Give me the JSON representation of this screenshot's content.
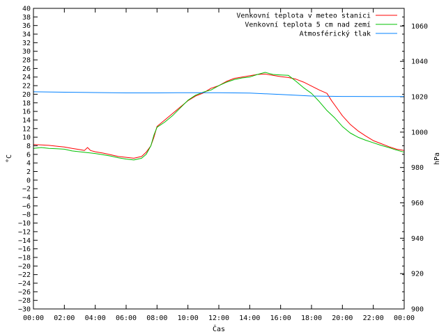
{
  "chart_data": {
    "type": "line",
    "title": "",
    "xlabel": "Čas",
    "ylabel_left": "°C",
    "ylabel_right": "hPa",
    "x_ticks": [
      "00:00",
      "02:00",
      "04:00",
      "06:00",
      "08:00",
      "10:00",
      "12:00",
      "14:00",
      "16:00",
      "18:00",
      "20:00",
      "22:00",
      "00:00"
    ],
    "xlim_hours": [
      0,
      24
    ],
    "ylim_left": [
      -30,
      40
    ],
    "y_ticks_left": [
      "40",
      "38",
      "36",
      "34",
      "32",
      "30",
      "28",
      "26",
      "24",
      "22",
      "20",
      "18",
      "16",
      "14",
      "12",
      "10",
      "8",
      "6",
      "4",
      "2",
      "0",
      "−2",
      "−4",
      "−6",
      "−8",
      "−10",
      "−12",
      "−14",
      "−16",
      "−18",
      "−20",
      "−22",
      "−24",
      "−26",
      "−28",
      "−30"
    ],
    "ylim_right": [
      900,
      1070
    ],
    "y_ticks_right": [
      "1060",
      "1040",
      "1020",
      "1000",
      "980",
      "960",
      "940",
      "920",
      "900"
    ],
    "legend_position": "top-right",
    "series": [
      {
        "name": "Venkovní teplota v meteo stanici",
        "axis": "left",
        "color": "#ff0000",
        "points": [
          [
            0,
            8.3
          ],
          [
            0.5,
            8.2
          ],
          [
            1,
            8.1
          ],
          [
            1.5,
            7.9
          ],
          [
            2,
            7.7
          ],
          [
            2.5,
            7.4
          ],
          [
            3,
            7.1
          ],
          [
            3.3,
            6.9
          ],
          [
            3.5,
            7.6
          ],
          [
            3.7,
            6.9
          ],
          [
            4,
            6.6
          ],
          [
            4.5,
            6.3
          ],
          [
            5,
            5.9
          ],
          [
            5.5,
            5.5
          ],
          [
            6,
            5.3
          ],
          [
            6.5,
            5.1
          ],
          [
            7,
            5.5
          ],
          [
            7.3,
            6.5
          ],
          [
            7.6,
            8.0
          ],
          [
            7.8,
            10.0
          ],
          [
            8,
            12.5
          ],
          [
            8.5,
            14.0
          ],
          [
            9,
            15.5
          ],
          [
            9.5,
            17.0
          ],
          [
            10,
            18.5
          ],
          [
            10.5,
            19.6
          ],
          [
            11,
            20.3
          ],
          [
            11.5,
            21.4
          ],
          [
            12,
            22.0
          ],
          [
            12.5,
            23.0
          ],
          [
            13,
            23.7
          ],
          [
            13.5,
            24.0
          ],
          [
            14,
            24.3
          ],
          [
            14.5,
            24.6
          ],
          [
            15,
            24.7
          ],
          [
            15.5,
            24.4
          ],
          [
            16,
            24.1
          ],
          [
            16.5,
            23.9
          ],
          [
            17,
            23.5
          ],
          [
            17.5,
            22.8
          ],
          [
            18,
            21.9
          ],
          [
            18.5,
            21.0
          ],
          [
            19,
            20.2
          ],
          [
            19.3,
            18.5
          ],
          [
            19.7,
            16.5
          ],
          [
            20,
            15.0
          ],
          [
            20.5,
            13.0
          ],
          [
            21,
            11.5
          ],
          [
            21.5,
            10.3
          ],
          [
            22,
            9.2
          ],
          [
            22.5,
            8.5
          ],
          [
            23,
            7.8
          ],
          [
            23.5,
            7.2
          ],
          [
            24,
            6.9
          ]
        ]
      },
      {
        "name": "Venkovní teplota 5 cm nad zemí",
        "axis": "left",
        "color": "#00c000",
        "points": [
          [
            0,
            7.4
          ],
          [
            0.5,
            7.6
          ],
          [
            1,
            7.4
          ],
          [
            1.5,
            7.3
          ],
          [
            2,
            7.2
          ],
          [
            2.5,
            6.8
          ],
          [
            3,
            6.6
          ],
          [
            3.5,
            6.4
          ],
          [
            4,
            6.2
          ],
          [
            4.5,
            5.9
          ],
          [
            5,
            5.6
          ],
          [
            5.5,
            5.2
          ],
          [
            6,
            4.9
          ],
          [
            6.5,
            4.7
          ],
          [
            7,
            5.1
          ],
          [
            7.3,
            6.0
          ],
          [
            7.6,
            8.0
          ],
          [
            7.8,
            10.5
          ],
          [
            8,
            12.3
          ],
          [
            8.5,
            13.5
          ],
          [
            9,
            15.0
          ],
          [
            9.5,
            16.8
          ],
          [
            10,
            18.6
          ],
          [
            10.5,
            19.8
          ],
          [
            11,
            20.5
          ],
          [
            11.5,
            21.0
          ],
          [
            12,
            22.0
          ],
          [
            12.5,
            22.8
          ],
          [
            13,
            23.4
          ],
          [
            13.5,
            23.8
          ],
          [
            14,
            24.0
          ],
          [
            14.5,
            24.6
          ],
          [
            15,
            25.1
          ],
          [
            15.5,
            24.6
          ],
          [
            16,
            24.5
          ],
          [
            16.5,
            24.4
          ],
          [
            17,
            23.0
          ],
          [
            17.5,
            21.5
          ],
          [
            18,
            20.2
          ],
          [
            18.5,
            18.3
          ],
          [
            19,
            16.2
          ],
          [
            19.5,
            14.5
          ],
          [
            20,
            12.5
          ],
          [
            20.5,
            11.0
          ],
          [
            21,
            10.0
          ],
          [
            21.5,
            9.3
          ],
          [
            22,
            8.7
          ],
          [
            22.5,
            8.1
          ],
          [
            23,
            7.6
          ],
          [
            23.5,
            7.0
          ],
          [
            24,
            6.5
          ]
        ]
      },
      {
        "name": "Atmosférický tlak",
        "axis": "right",
        "color": "#0080ff",
        "points": [
          [
            0,
            1022.8
          ],
          [
            2,
            1022.6
          ],
          [
            4,
            1022.4
          ],
          [
            6,
            1022.2
          ],
          [
            8,
            1022.2
          ],
          [
            10,
            1022.3
          ],
          [
            12,
            1022.3
          ],
          [
            14,
            1022.1
          ],
          [
            16,
            1021.3
          ],
          [
            18,
            1020.4
          ],
          [
            20,
            1020.2
          ],
          [
            22,
            1020.1
          ],
          [
            24,
            1020.1
          ]
        ]
      }
    ]
  }
}
